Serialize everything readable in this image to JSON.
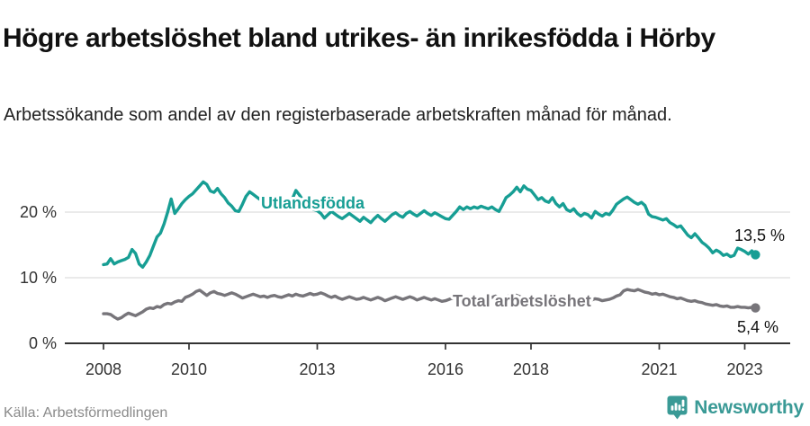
{
  "header": {
    "title": "Högre arbetslöshet bland utrikes- än inrikesfödda i Hörby",
    "subtitle": "Arbetssökande som andel av den registerbaserade arbetskraften månad för månad."
  },
  "footer": {
    "source": "Källa: Arbetsförmedlingen",
    "brand": "Newsworthy"
  },
  "colors": {
    "accent_teal": "#179e94",
    "line_gray": "#77757a",
    "grid": "#dddddd",
    "axis": "#333333",
    "tick_text": "#333333",
    "end_label_text": "#111111",
    "brand_teal": "#3a9a96"
  },
  "chart_data": {
    "type": "line",
    "x_unit": "month",
    "start_month": "2008-01",
    "end_month": "2023-04",
    "x_ticks": [
      2008,
      2010,
      2013,
      2016,
      2018,
      2021,
      2023
    ],
    "y_ticks": [
      {
        "value": 0,
        "label": "0 %"
      },
      {
        "value": 10,
        "label": "10 %"
      },
      {
        "value": 20,
        "label": "20 %"
      }
    ],
    "ylim": [
      0,
      26
    ],
    "grid": true,
    "series": [
      {
        "name": "Utlandsfödda",
        "color": "#179e94",
        "end_label": "13,5 %",
        "end_value": 13.5,
        "values": [
          12.0,
          12.1,
          12.9,
          12.1,
          12.4,
          12.6,
          12.8,
          13.1,
          14.3,
          13.7,
          12.1,
          11.6,
          12.4,
          13.4,
          14.8,
          16.2,
          16.8,
          18.2,
          20.0,
          22.0,
          19.8,
          20.5,
          21.3,
          21.9,
          22.4,
          22.8,
          23.4,
          24.0,
          24.6,
          24.2,
          23.2,
          23.0,
          23.6,
          22.8,
          22.2,
          21.4,
          20.9,
          20.2,
          20.1,
          21.2,
          22.4,
          23.1,
          22.7,
          22.3,
          21.9,
          21.6,
          21.9,
          22.2,
          21.8,
          21.4,
          21.0,
          20.7,
          21.2,
          22.0,
          23.3,
          22.6,
          21.8,
          21.3,
          20.9,
          20.4,
          20.2,
          19.8,
          19.1,
          19.6,
          20.1,
          19.7,
          19.3,
          19.0,
          19.4,
          19.8,
          19.4,
          19.0,
          18.6,
          19.2,
          18.8,
          18.4,
          19.0,
          19.5,
          19.0,
          18.6,
          19.1,
          19.6,
          19.9,
          19.5,
          19.2,
          19.8,
          20.1,
          19.7,
          19.4,
          19.8,
          20.2,
          19.8,
          19.5,
          19.9,
          19.6,
          19.3,
          19.0,
          18.9,
          19.5,
          20.1,
          20.8,
          20.4,
          20.8,
          20.5,
          20.8,
          20.6,
          20.9,
          20.7,
          20.5,
          20.8,
          20.4,
          20.1,
          21.1,
          22.2,
          22.6,
          23.1,
          23.8,
          23.1,
          24.0,
          23.5,
          23.3,
          22.6,
          21.9,
          22.2,
          21.7,
          21.5,
          22.2,
          21.3,
          20.8,
          21.3,
          20.4,
          20.1,
          20.5,
          19.8,
          19.4,
          19.8,
          19.6,
          19.1,
          20.1,
          19.7,
          19.4,
          19.8,
          19.6,
          20.3,
          21.2,
          21.6,
          22.0,
          22.3,
          21.9,
          21.5,
          21.2,
          21.5,
          21.0,
          19.7,
          19.3,
          19.2,
          19.0,
          18.8,
          19.0,
          18.4,
          18.1,
          17.7,
          17.9,
          17.2,
          16.5,
          16.1,
          16.7,
          16.1,
          15.4,
          15.0,
          14.5,
          13.8,
          14.2,
          13.9,
          13.4,
          13.6,
          13.2,
          13.4,
          14.5,
          14.3,
          14.0,
          13.6,
          14.1,
          13.5
        ]
      },
      {
        "name": "Total arbetslöshet",
        "color": "#77757a",
        "end_label": "5,4 %",
        "end_value": 5.4,
        "values": [
          4.5,
          4.5,
          4.4,
          4.0,
          3.7,
          3.9,
          4.3,
          4.6,
          4.4,
          4.2,
          4.5,
          4.8,
          5.2,
          5.4,
          5.3,
          5.6,
          5.5,
          5.9,
          6.1,
          6.0,
          6.3,
          6.5,
          6.4,
          7.0,
          7.2,
          7.5,
          7.9,
          8.1,
          7.7,
          7.3,
          7.7,
          7.9,
          7.6,
          7.5,
          7.3,
          7.5,
          7.7,
          7.5,
          7.2,
          6.9,
          7.1,
          7.3,
          7.5,
          7.3,
          7.1,
          7.2,
          7.0,
          7.2,
          7.3,
          7.1,
          7.0,
          7.2,
          7.4,
          7.2,
          7.5,
          7.3,
          7.2,
          7.4,
          7.6,
          7.4,
          7.5,
          7.7,
          7.5,
          7.2,
          7.0,
          7.2,
          6.9,
          6.7,
          6.9,
          7.1,
          6.9,
          6.7,
          6.8,
          7.0,
          6.8,
          6.6,
          6.8,
          7.0,
          6.8,
          6.5,
          6.7,
          6.9,
          7.1,
          6.9,
          6.7,
          6.9,
          7.1,
          6.9,
          6.6,
          6.8,
          7.0,
          6.8,
          6.6,
          6.8,
          6.6,
          6.4,
          6.5,
          6.7,
          6.9,
          7.1,
          6.9,
          6.7,
          6.9,
          7.1,
          7.0,
          6.8,
          6.9,
          6.7,
          6.8,
          7.0,
          7.2,
          7.0,
          6.8,
          7.0,
          7.3,
          7.5,
          7.3,
          7.1,
          6.9,
          7.1,
          7.0,
          6.8,
          6.6,
          6.8,
          6.6,
          6.7,
          6.9,
          6.7,
          6.5,
          6.7,
          6.6,
          6.8,
          6.7,
          6.5,
          6.7,
          6.6,
          6.4,
          6.6,
          6.8,
          6.7,
          6.5,
          6.6,
          6.7,
          6.9,
          7.2,
          7.4,
          8.0,
          8.2,
          8.1,
          8.0,
          8.2,
          8.0,
          7.8,
          7.7,
          7.5,
          7.6,
          7.4,
          7.5,
          7.3,
          7.1,
          7.0,
          6.8,
          6.9,
          6.7,
          6.5,
          6.4,
          6.5,
          6.3,
          6.2,
          6.0,
          5.9,
          5.8,
          5.9,
          5.7,
          5.6,
          5.7,
          5.5,
          5.5,
          5.6,
          5.5,
          5.5,
          5.4,
          5.5,
          5.4
        ]
      }
    ]
  }
}
